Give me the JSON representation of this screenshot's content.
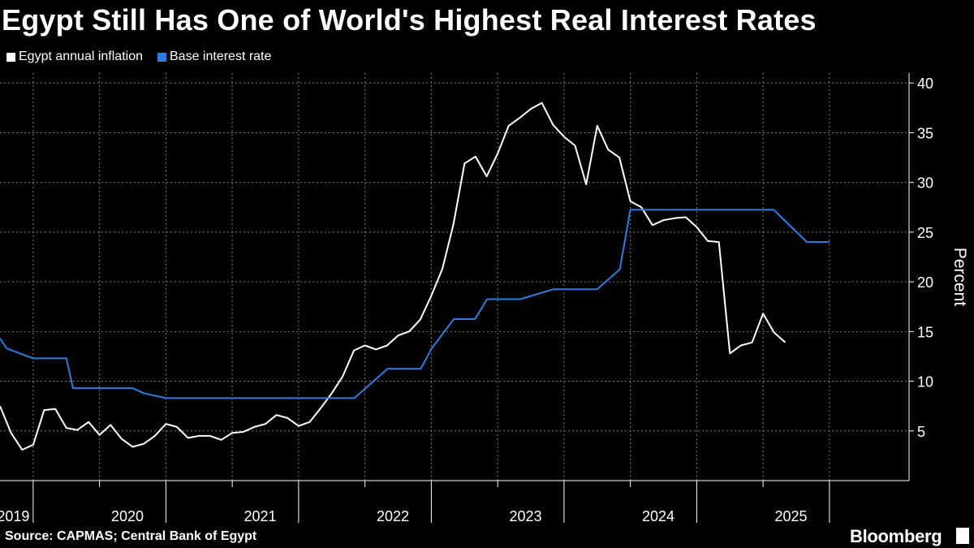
{
  "chart_data": {
    "type": "line",
    "title": "Egypt Still Has One of World's Highest Real Interest Rates",
    "ylabel": "Percent",
    "ylim": [
      0,
      41
    ],
    "yticks": [
      5,
      10,
      15,
      20,
      25,
      30,
      35,
      40
    ],
    "x_range": [
      2019.0,
      2025.85
    ],
    "year_labels": [
      {
        "label": "2019",
        "x": 2019.1
      },
      {
        "label": "2020",
        "x": 2019.96
      },
      {
        "label": "2021",
        "x": 2020.96
      },
      {
        "label": "2022",
        "x": 2021.96
      },
      {
        "label": "2023",
        "x": 2022.96
      },
      {
        "label": "2024",
        "x": 2023.96
      },
      {
        "label": "2025",
        "x": 2024.96
      }
    ],
    "year_boundaries": [
      2019.25,
      2020.25,
      2021.25,
      2022.25,
      2023.25,
      2024.25,
      2025.25
    ],
    "minor_ticks": [
      2019.75,
      2020.75,
      2021.75,
      2022.75,
      2023.75,
      2024.75
    ],
    "series": [
      {
        "name": "Egypt annual inflation",
        "color": "#ffffff",
        "points": [
          [
            2019.0,
            7.5
          ],
          [
            2019.083,
            4.8
          ],
          [
            2019.167,
            3.1
          ],
          [
            2019.25,
            3.6
          ],
          [
            2019.333,
            7.1
          ],
          [
            2019.417,
            7.2
          ],
          [
            2019.5,
            5.3
          ],
          [
            2019.583,
            5.1
          ],
          [
            2019.667,
            5.9
          ],
          [
            2019.75,
            4.6
          ],
          [
            2019.833,
            5.6
          ],
          [
            2019.917,
            4.2
          ],
          [
            2020.0,
            3.4
          ],
          [
            2020.083,
            3.7
          ],
          [
            2020.167,
            4.5
          ],
          [
            2020.25,
            5.7
          ],
          [
            2020.333,
            5.4
          ],
          [
            2020.417,
            4.3
          ],
          [
            2020.5,
            4.5
          ],
          [
            2020.583,
            4.5
          ],
          [
            2020.667,
            4.1
          ],
          [
            2020.75,
            4.8
          ],
          [
            2020.833,
            4.9
          ],
          [
            2020.917,
            5.4
          ],
          [
            2021.0,
            5.7
          ],
          [
            2021.083,
            6.6
          ],
          [
            2021.167,
            6.3
          ],
          [
            2021.25,
            5.5
          ],
          [
            2021.333,
            5.9
          ],
          [
            2021.417,
            7.3
          ],
          [
            2021.5,
            8.8
          ],
          [
            2021.583,
            10.5
          ],
          [
            2021.667,
            13.1
          ],
          [
            2021.75,
            13.6
          ],
          [
            2021.833,
            13.2
          ],
          [
            2021.917,
            13.6
          ],
          [
            2022.0,
            14.6
          ],
          [
            2022.083,
            15.0
          ],
          [
            2022.167,
            16.2
          ],
          [
            2022.25,
            18.6
          ],
          [
            2022.333,
            21.3
          ],
          [
            2022.417,
            25.8
          ],
          [
            2022.5,
            31.9
          ],
          [
            2022.583,
            32.6
          ],
          [
            2022.667,
            30.6
          ],
          [
            2022.75,
            32.9
          ],
          [
            2022.833,
            35.7
          ],
          [
            2022.917,
            36.5
          ],
          [
            2023.0,
            37.4
          ],
          [
            2023.083,
            38.0
          ],
          [
            2023.167,
            35.8
          ],
          [
            2023.25,
            34.6
          ],
          [
            2023.333,
            33.7
          ],
          [
            2023.417,
            29.8
          ],
          [
            2023.5,
            35.7
          ],
          [
            2023.583,
            33.3
          ],
          [
            2023.667,
            32.5
          ],
          [
            2023.75,
            28.1
          ],
          [
            2023.833,
            27.5
          ],
          [
            2023.917,
            25.7
          ],
          [
            2024.0,
            26.2
          ],
          [
            2024.083,
            26.4
          ],
          [
            2024.167,
            26.5
          ],
          [
            2024.25,
            25.5
          ],
          [
            2024.333,
            24.1
          ],
          [
            2024.417,
            24.0
          ],
          [
            2024.5,
            12.8
          ],
          [
            2024.583,
            13.6
          ],
          [
            2024.667,
            13.9
          ],
          [
            2024.75,
            16.8
          ],
          [
            2024.833,
            14.9
          ],
          [
            2024.917,
            13.9
          ]
        ]
      },
      {
        "name": "Base interest rate",
        "color": "#2b7ee0",
        "points": [
          [
            2019.0,
            14.3
          ],
          [
            2019.05,
            13.3
          ],
          [
            2019.25,
            12.3
          ],
          [
            2019.5,
            12.3
          ],
          [
            2019.55,
            9.3
          ],
          [
            2019.92,
            9.3
          ],
          [
            2020.0,
            9.3
          ],
          [
            2020.083,
            8.8
          ],
          [
            2020.25,
            8.3
          ],
          [
            2021.0,
            8.3
          ],
          [
            2021.58,
            8.3
          ],
          [
            2021.67,
            8.3
          ],
          [
            2021.92,
            11.25
          ],
          [
            2022.17,
            11.25
          ],
          [
            2022.25,
            13.25
          ],
          [
            2022.42,
            16.25
          ],
          [
            2022.58,
            16.25
          ],
          [
            2022.67,
            18.25
          ],
          [
            2022.92,
            18.25
          ],
          [
            2023.17,
            19.25
          ],
          [
            2023.5,
            19.25
          ],
          [
            2023.67,
            21.25
          ],
          [
            2023.75,
            27.25
          ],
          [
            2024.83,
            27.25
          ],
          [
            2025.08,
            24.0
          ],
          [
            2025.25,
            24.0
          ]
        ]
      }
    ],
    "legend": [
      "Egypt annual inflation",
      "Base interest rate"
    ],
    "legend_position": "top-left",
    "grid": true
  },
  "source": "Source: CAPMAS; Central Bank of Egypt",
  "brand": "Bloomberg"
}
